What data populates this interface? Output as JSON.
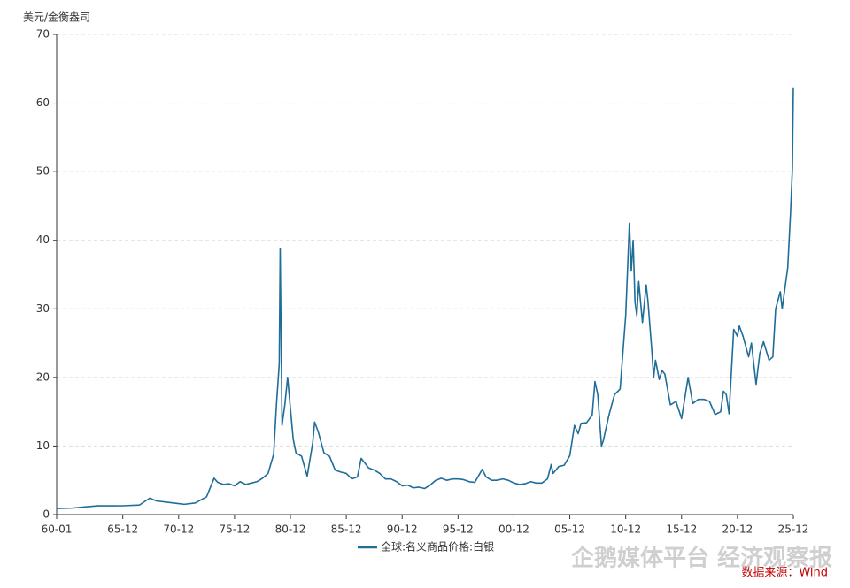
{
  "chart_data": {
    "type": "line",
    "y_label": "美元/金衡盎司",
    "source": "数据来源：Wind",
    "watermark": "企鹅媒体平台 经济观察报",
    "x": [
      "60-01",
      "61-06",
      "62-06",
      "63-09",
      "65-12",
      "67-06",
      "68-05",
      "68-12",
      "69-12",
      "70-12",
      "71-06",
      "72-06",
      "73-06",
      "74-02",
      "74-06",
      "74-12",
      "75-06",
      "75-12",
      "76-06",
      "76-12",
      "77-06",
      "77-12",
      "78-06",
      "78-12",
      "79-06",
      "79-09",
      "79-12",
      "80-01",
      "80-03",
      "80-06",
      "80-09",
      "80-12",
      "81-03",
      "81-06",
      "81-12",
      "82-06",
      "82-12",
      "83-02",
      "83-06",
      "83-12",
      "84-06",
      "84-12",
      "85-06",
      "85-12",
      "86-06",
      "86-12",
      "87-04",
      "87-12",
      "88-06",
      "88-12",
      "89-06",
      "89-12",
      "90-06",
      "90-12",
      "91-06",
      "91-12",
      "92-06",
      "92-12",
      "93-06",
      "93-12",
      "94-06",
      "94-12",
      "95-06",
      "95-12",
      "96-06",
      "96-12",
      "97-06",
      "98-02",
      "98-06",
      "98-12",
      "99-06",
      "99-12",
      "00-06",
      "00-12",
      "01-06",
      "01-12",
      "02-06",
      "02-12",
      "03-06",
      "03-12",
      "04-04",
      "04-06",
      "04-12",
      "05-06",
      "05-12",
      "06-05",
      "06-09",
      "06-12",
      "07-06",
      "07-12",
      "08-03",
      "08-06",
      "08-10",
      "08-12",
      "09-06",
      "09-12",
      "10-06",
      "10-12",
      "11-04",
      "11-06",
      "11-08",
      "11-10",
      "11-12",
      "12-02",
      "12-06",
      "12-10",
      "12-12",
      "13-04",
      "13-06",
      "13-08",
      "13-12",
      "14-03",
      "14-06",
      "14-12",
      "15-06",
      "15-12",
      "16-07",
      "16-12",
      "17-06",
      "17-12",
      "18-06",
      "18-12",
      "19-06",
      "19-09",
      "19-12",
      "20-03",
      "20-08",
      "20-12",
      "21-02",
      "21-06",
      "21-12",
      "22-03",
      "22-08",
      "22-12",
      "23-04",
      "23-10",
      "24-02",
      "24-05",
      "24-10",
      "24-12",
      "25-03",
      "25-06",
      "25-09",
      "25-11",
      "25-12"
    ],
    "series": [
      {
        "name": "全球:名义商品价格:白银",
        "color": "#1f6d99",
        "values": [
          0.9,
          0.95,
          1.1,
          1.28,
          1.29,
          1.4,
          2.4,
          2.0,
          1.8,
          1.6,
          1.5,
          1.7,
          2.6,
          5.3,
          4.7,
          4.4,
          4.5,
          4.2,
          4.8,
          4.4,
          4.6,
          4.8,
          5.3,
          6.0,
          8.8,
          16,
          22,
          38.8,
          13,
          16,
          20,
          15.5,
          11,
          9,
          8.5,
          5.6,
          10.5,
          13.5,
          12,
          9,
          8.5,
          6.5,
          6.2,
          6.0,
          5.2,
          5.5,
          8.2,
          6.8,
          6.5,
          6.0,
          5.2,
          5.2,
          4.8,
          4.2,
          4.3,
          3.9,
          4.0,
          3.8,
          4.3,
          5.0,
          5.3,
          5.0,
          5.2,
          5.2,
          5.1,
          4.8,
          4.7,
          6.6,
          5.5,
          5.0,
          5.0,
          5.2,
          5.0,
          4.6,
          4.4,
          4.5,
          4.8,
          4.6,
          4.6,
          5.2,
          7.3,
          6.0,
          7.0,
          7.2,
          8.6,
          13.0,
          11.8,
          13.3,
          13.4,
          14.5,
          19.4,
          17.5,
          10.0,
          10.8,
          14.5,
          17.5,
          18.3,
          29,
          42.5,
          35.5,
          40,
          31,
          29,
          34,
          28,
          33.5,
          31,
          24,
          20,
          22.5,
          19.7,
          21,
          20.5,
          16,
          16.5,
          14,
          20,
          16.2,
          16.8,
          16.8,
          16.5,
          14.6,
          15,
          18,
          17.5,
          14.7,
          27,
          26,
          27.5,
          26,
          23,
          25,
          19,
          23.5,
          25.2,
          22.5,
          23,
          30,
          32.5,
          30,
          33,
          36,
          44,
          50.5,
          62.3
        ]
      }
    ],
    "xticks": [
      "60-01",
      "65-12",
      "70-12",
      "75-12",
      "80-12",
      "85-12",
      "90-12",
      "95-12",
      "00-12",
      "05-12",
      "10-12",
      "15-12",
      "20-12",
      "25-12"
    ],
    "ylim": [
      0,
      70
    ],
    "yticks": [
      0,
      10,
      20,
      30,
      40,
      50,
      60,
      70
    ],
    "grid": true
  }
}
